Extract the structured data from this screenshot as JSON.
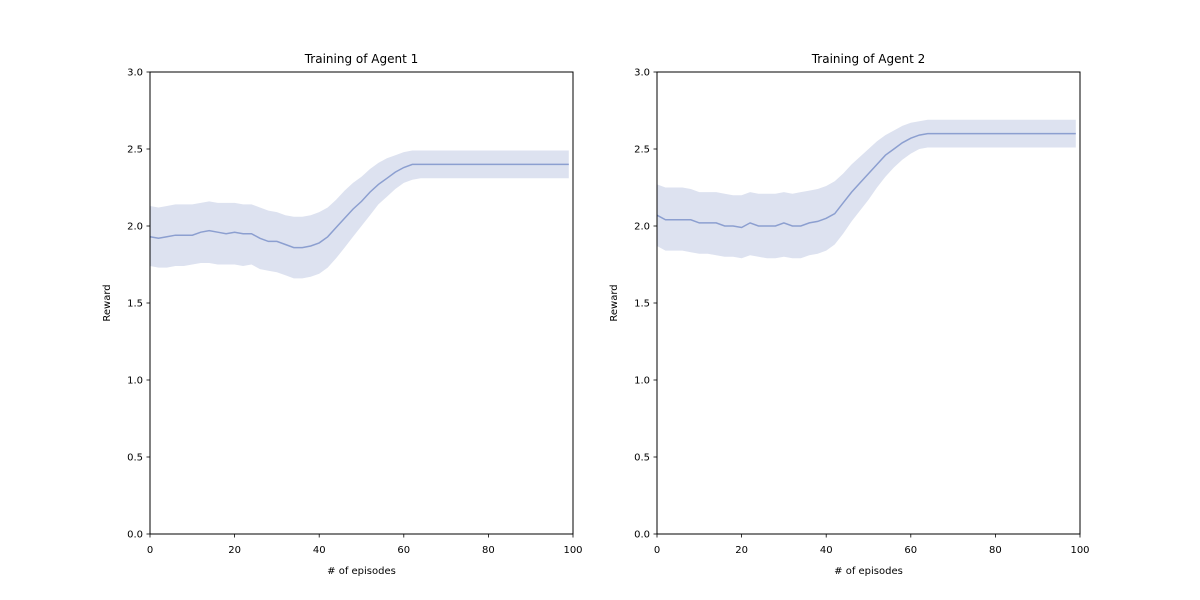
{
  "chart_data": [
    {
      "type": "line",
      "title": "Training of Agent 1",
      "xlabel": "# of episodes",
      "ylabel": "Reward",
      "xlim": [
        0,
        100
      ],
      "ylim": [
        0,
        3
      ],
      "xticks": [
        0,
        20,
        40,
        60,
        80,
        100
      ],
      "xtick_labels": [
        "0",
        "20",
        "40",
        "60",
        "80",
        "100"
      ],
      "yticks": [
        0,
        0.5,
        1,
        1.5,
        2,
        2.5,
        3
      ],
      "ytick_labels": [
        "0.0",
        "0.5",
        "1.0",
        "1.5",
        "2.0",
        "2.5",
        "3.0"
      ],
      "grid": false,
      "line_color": "#8c9fd0",
      "band_color": "#dde2f0",
      "x": [
        0,
        2,
        4,
        6,
        8,
        10,
        12,
        14,
        16,
        18,
        20,
        22,
        24,
        26,
        28,
        30,
        32,
        34,
        36,
        38,
        40,
        42,
        44,
        46,
        48,
        50,
        52,
        54,
        56,
        58,
        60,
        62,
        64,
        66,
        70,
        80,
        90,
        99
      ],
      "mean": [
        1.93,
        1.92,
        1.93,
        1.94,
        1.94,
        1.94,
        1.96,
        1.97,
        1.96,
        1.95,
        1.96,
        1.95,
        1.95,
        1.92,
        1.9,
        1.9,
        1.88,
        1.86,
        1.86,
        1.87,
        1.89,
        1.93,
        1.99,
        2.05,
        2.11,
        2.16,
        2.22,
        2.27,
        2.31,
        2.35,
        2.38,
        2.4,
        2.4,
        2.4,
        2.4,
        2.4,
        2.4,
        2.4
      ],
      "lower": [
        1.74,
        1.73,
        1.73,
        1.74,
        1.74,
        1.75,
        1.76,
        1.76,
        1.75,
        1.75,
        1.75,
        1.74,
        1.75,
        1.72,
        1.71,
        1.7,
        1.68,
        1.66,
        1.66,
        1.67,
        1.69,
        1.73,
        1.79,
        1.86,
        1.93,
        2.0,
        2.07,
        2.14,
        2.19,
        2.24,
        2.28,
        2.3,
        2.31,
        2.31,
        2.31,
        2.31,
        2.31,
        2.31
      ],
      "upper": [
        2.13,
        2.12,
        2.13,
        2.14,
        2.14,
        2.14,
        2.15,
        2.16,
        2.15,
        2.15,
        2.15,
        2.14,
        2.14,
        2.12,
        2.1,
        2.09,
        2.07,
        2.06,
        2.06,
        2.07,
        2.09,
        2.12,
        2.17,
        2.23,
        2.28,
        2.32,
        2.37,
        2.41,
        2.44,
        2.46,
        2.48,
        2.49,
        2.49,
        2.49,
        2.49,
        2.49,
        2.49,
        2.49
      ]
    },
    {
      "type": "line",
      "title": "Training of Agent 2",
      "xlabel": "# of episodes",
      "ylabel": "Reward",
      "xlim": [
        0,
        100
      ],
      "ylim": [
        0,
        3
      ],
      "xticks": [
        0,
        20,
        40,
        60,
        80,
        100
      ],
      "xtick_labels": [
        "0",
        "20",
        "40",
        "60",
        "80",
        "100"
      ],
      "yticks": [
        0,
        0.5,
        1,
        1.5,
        2,
        2.5,
        3
      ],
      "ytick_labels": [
        "0.0",
        "0.5",
        "1.0",
        "1.5",
        "2.0",
        "2.5",
        "3.0"
      ],
      "grid": false,
      "line_color": "#8c9fd0",
      "band_color": "#dde2f0",
      "x": [
        0,
        2,
        4,
        6,
        8,
        10,
        12,
        14,
        16,
        18,
        20,
        22,
        24,
        26,
        28,
        30,
        32,
        34,
        36,
        38,
        40,
        42,
        44,
        46,
        48,
        50,
        52,
        54,
        56,
        58,
        60,
        62,
        64,
        66,
        70,
        80,
        90,
        99
      ],
      "mean": [
        2.07,
        2.04,
        2.04,
        2.04,
        2.04,
        2.02,
        2.02,
        2.02,
        2.0,
        2.0,
        1.99,
        2.02,
        2.0,
        2.0,
        2.0,
        2.02,
        2.0,
        2.0,
        2.02,
        2.03,
        2.05,
        2.08,
        2.15,
        2.22,
        2.28,
        2.34,
        2.4,
        2.46,
        2.5,
        2.54,
        2.57,
        2.59,
        2.6,
        2.6,
        2.6,
        2.6,
        2.6,
        2.6
      ],
      "lower": [
        1.87,
        1.84,
        1.84,
        1.84,
        1.83,
        1.82,
        1.82,
        1.81,
        1.8,
        1.8,
        1.79,
        1.81,
        1.8,
        1.79,
        1.79,
        1.8,
        1.79,
        1.79,
        1.81,
        1.82,
        1.84,
        1.88,
        1.95,
        2.03,
        2.1,
        2.17,
        2.25,
        2.32,
        2.38,
        2.43,
        2.47,
        2.5,
        2.51,
        2.51,
        2.51,
        2.51,
        2.51,
        2.51
      ],
      "upper": [
        2.27,
        2.25,
        2.25,
        2.25,
        2.24,
        2.22,
        2.22,
        2.22,
        2.21,
        2.2,
        2.2,
        2.22,
        2.21,
        2.21,
        2.21,
        2.22,
        2.21,
        2.22,
        2.23,
        2.24,
        2.26,
        2.29,
        2.34,
        2.4,
        2.45,
        2.5,
        2.55,
        2.59,
        2.62,
        2.65,
        2.67,
        2.68,
        2.69,
        2.69,
        2.69,
        2.69,
        2.69,
        2.69
      ]
    }
  ]
}
